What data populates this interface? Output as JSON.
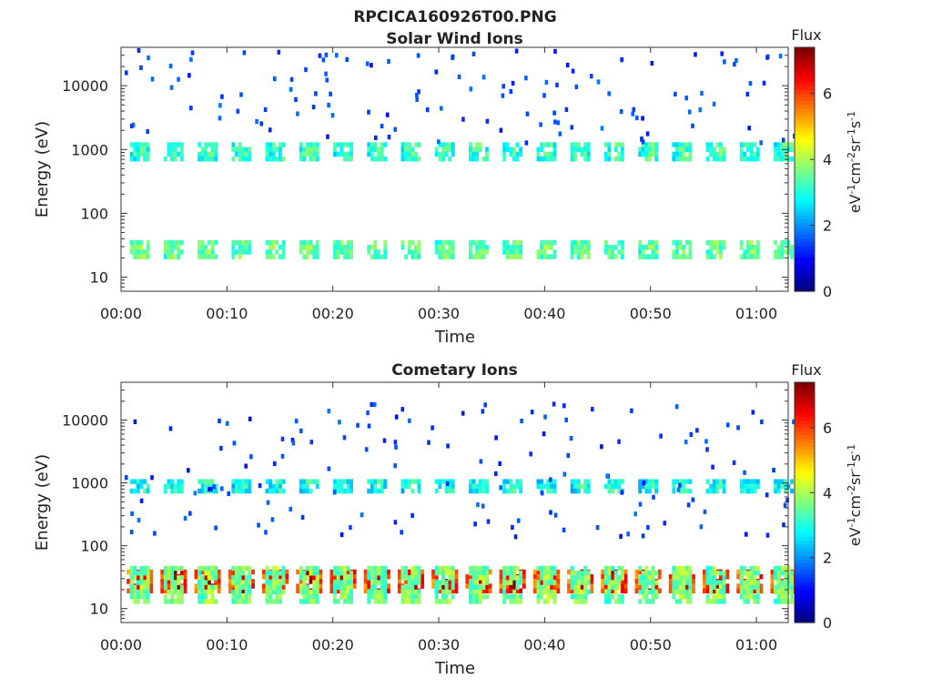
{
  "figure": {
    "title": "RPCICA160926T00.PNG"
  },
  "colormap": "jet",
  "chart_data": [
    {
      "type": "heatmap",
      "title": "Solar Wind Ions",
      "xlabel": "Time",
      "ylabel": "Energy (eV)",
      "y_scale": "log",
      "ylim": [
        6,
        40000
      ],
      "xlim_minutes": [
        0,
        63
      ],
      "x_ticks": [
        "00:00",
        "00:10",
        "00:20",
        "00:30",
        "00:40",
        "00:50",
        "01:00"
      ],
      "y_ticks": [
        "10",
        "100",
        "1000",
        "10000"
      ],
      "colorbar": {
        "label": "Flux",
        "units": "eV-1cm-2sr-1s-1",
        "range": [
          0,
          7.4
        ],
        "ticks": [
          "0",
          "2",
          "4",
          "6"
        ]
      },
      "scan_period_minutes": 3.2,
      "bands": [
        {
          "name": "low-energy band",
          "energy_min": 20,
          "energy_max": 38,
          "flux": 3.0
        },
        {
          "name": "solar wind peak",
          "energy_min": 700,
          "energy_max": 1300,
          "flux": 2.7
        },
        {
          "name": "high-energy scatter",
          "energy_min": 1300,
          "energy_max": 40000,
          "flux": 1.0
        }
      ]
    },
    {
      "type": "heatmap",
      "title": "Cometary Ions",
      "xlabel": "Time",
      "ylabel": "Energy (eV)",
      "y_scale": "log",
      "ylim": [
        6,
        40000
      ],
      "xlim_minutes": [
        0,
        63
      ],
      "x_ticks": [
        "00:00",
        "00:10",
        "00:20",
        "00:30",
        "00:40",
        "00:50",
        "01:00"
      ],
      "y_ticks": [
        "10",
        "100",
        "1000",
        "10000"
      ],
      "colorbar": {
        "label": "Flux",
        "units": "eV-1cm-2sr-1s-1",
        "range": [
          0,
          7.4
        ],
        "ticks": [
          "0",
          "2",
          "4",
          "6"
        ]
      },
      "scan_period_minutes": 3.2,
      "bands": [
        {
          "name": "cometary core",
          "energy_min": 20,
          "energy_max": 42,
          "flux": 5.5
        },
        {
          "name": "cometary wings",
          "energy_min": 14,
          "energy_max": 48,
          "flux": 3.2
        },
        {
          "name": "1 keV line",
          "energy_min": 800,
          "energy_max": 1150,
          "flux": 2.4
        },
        {
          "name": "scatter",
          "energy_min": 150,
          "energy_max": 20000,
          "flux": 1.0
        }
      ]
    }
  ]
}
